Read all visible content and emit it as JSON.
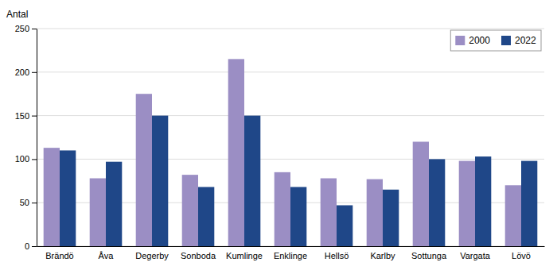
{
  "chart_data": {
    "type": "bar",
    "y_label": "Antal",
    "categories": [
      "Brändö",
      "Åva",
      "Degerby",
      "Sonboda",
      "Kumlinge",
      "Enklinge",
      "Hellsö",
      "Karlby",
      "Sottunga",
      "Vargata",
      "Lövö"
    ],
    "series": [
      {
        "name": "2000",
        "color": "#9b8ec4",
        "values": [
          113,
          78,
          175,
          82,
          215,
          85,
          78,
          77,
          120,
          98,
          70
        ]
      },
      {
        "name": "2022",
        "color": "#1f4788",
        "values": [
          110,
          97,
          150,
          68,
          150,
          68,
          47,
          65,
          100,
          103,
          98
        ]
      }
    ],
    "ylim": [
      0,
      250
    ],
    "yticks": [
      0,
      50,
      100,
      150,
      200,
      250
    ],
    "grid": true,
    "legend": "top-right"
  }
}
